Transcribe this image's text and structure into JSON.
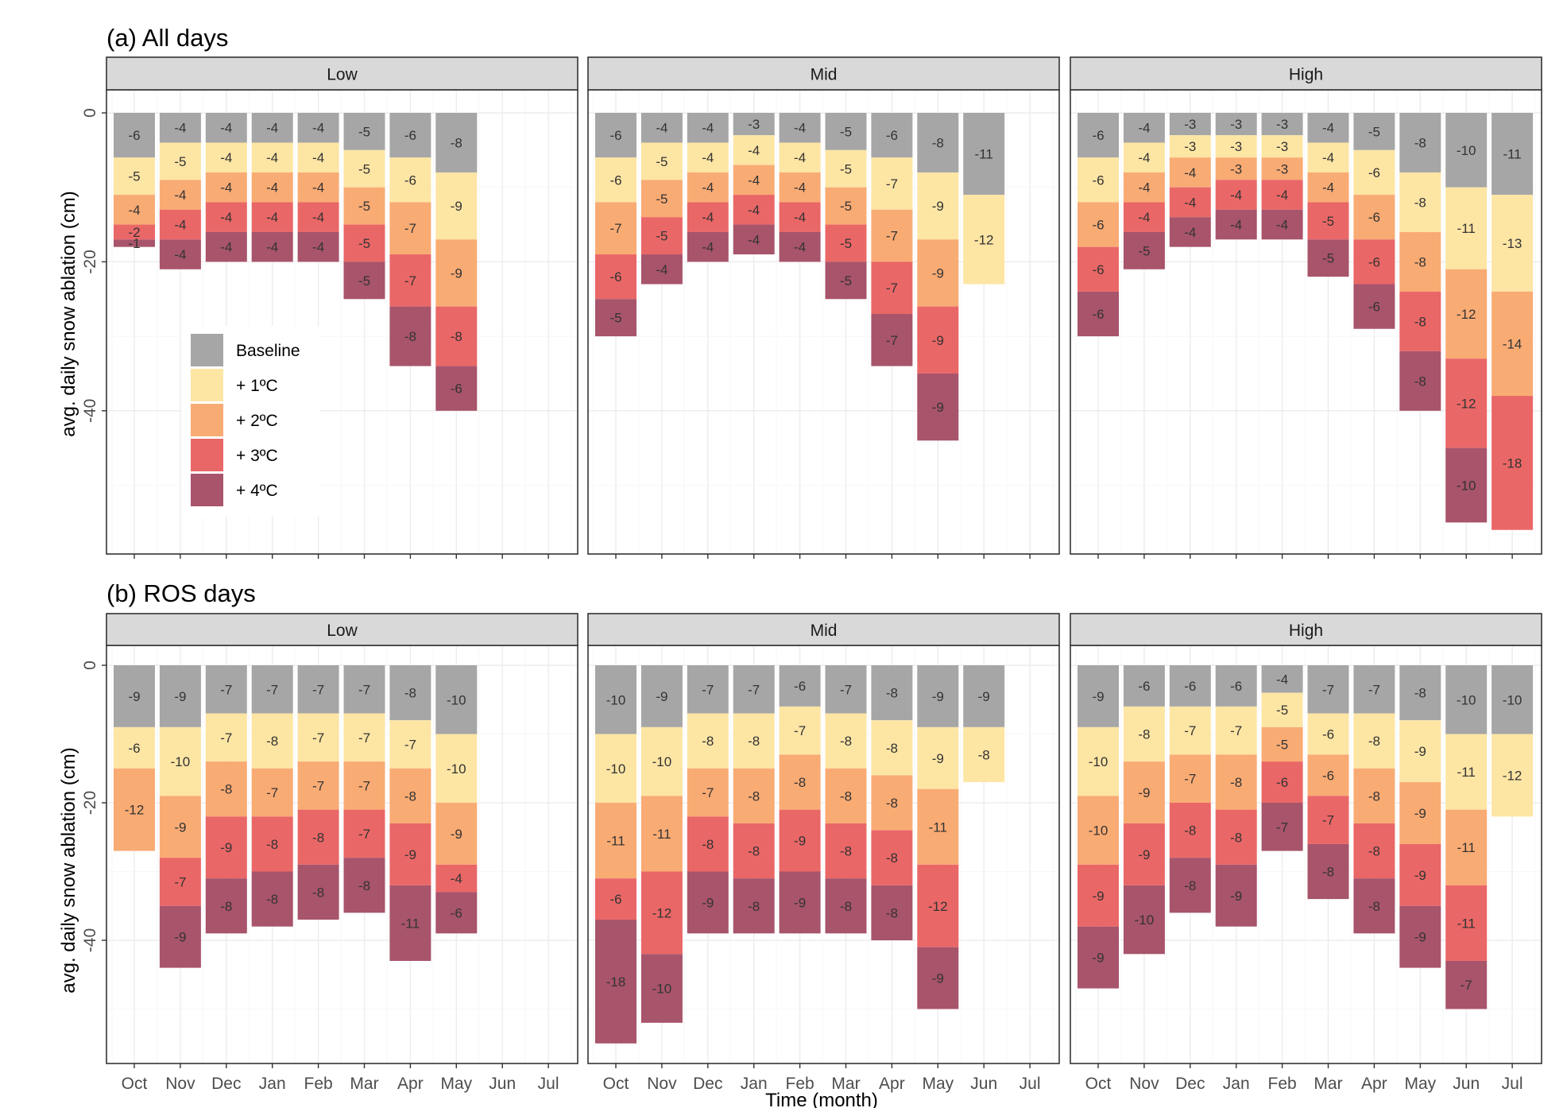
{
  "colors": {
    "Baseline": "#a6a6a6",
    "+ 1ºC": "#fde5a4",
    "+ 2ºC": "#f9ab74",
    "+ 3ºC": "#ea6767",
    "+ 4ºC": "#a8546b",
    "strip_fill": "#d9d9d9",
    "grid": "#ebebeb"
  },
  "xlabel": "Time (month)",
  "ylabel": "avg. daily snow ablation (cm)",
  "legend": {
    "position": "inside top-left panel, lower-left",
    "entries": [
      "Baseline",
      "+ 1ºC",
      "+ 2ºC",
      "+ 3ºC",
      "+ 4ºC"
    ]
  },
  "chart_data": [
    {
      "type": "bar",
      "stacked": true,
      "title": "(a) All days",
      "facets": [
        "Low",
        "Mid",
        "High"
      ],
      "categories": [
        "Oct",
        "Nov",
        "Dec",
        "Jan",
        "Feb",
        "Mar",
        "Apr",
        "May",
        "Jun",
        "Jul"
      ],
      "ylim": [
        -59,
        0
      ],
      "yticks": [
        0,
        -20,
        -40
      ],
      "series_order": [
        "Baseline",
        "+ 1ºC",
        "+ 2ºC",
        "+ 3ºC",
        "+ 4ºC"
      ],
      "panels": [
        {
          "facet": "Low",
          "series": [
            {
              "name": "Baseline",
              "values": [
                -6,
                -4,
                -4,
                -4,
                -4,
                -5,
                -6,
                -8,
                null,
                null
              ]
            },
            {
              "name": "+ 1ºC",
              "values": [
                -5,
                -5,
                -4,
                -4,
                -4,
                -5,
                -6,
                -9,
                null,
                null
              ]
            },
            {
              "name": "+ 2ºC",
              "values": [
                -4,
                -4,
                -4,
                -4,
                -4,
                -5,
                -7,
                -9,
                null,
                null
              ]
            },
            {
              "name": "+ 3ºC",
              "values": [
                -2,
                -4,
                -4,
                -4,
                -4,
                -5,
                -7,
                -8,
                null,
                null
              ]
            },
            {
              "name": "+ 4ºC",
              "values": [
                -1,
                -4,
                -4,
                -4,
                -4,
                -5,
                -8,
                -6,
                null,
                null
              ]
            }
          ]
        },
        {
          "facet": "Mid",
          "series": [
            {
              "name": "Baseline",
              "values": [
                -6,
                -4,
                -4,
                -3,
                -4,
                -5,
                -6,
                -8,
                -11,
                null
              ]
            },
            {
              "name": "+ 1ºC",
              "values": [
                -6,
                -5,
                -4,
                -4,
                -4,
                -5,
                -7,
                -9,
                -12,
                null
              ]
            },
            {
              "name": "+ 2ºC",
              "values": [
                -7,
                -5,
                -4,
                -4,
                -4,
                -5,
                -7,
                -9,
                null,
                null
              ]
            },
            {
              "name": "+ 3ºC",
              "values": [
                -6,
                -5,
                -4,
                -4,
                -4,
                -5,
                -7,
                -9,
                null,
                null
              ]
            },
            {
              "name": "+ 4ºC",
              "values": [
                -5,
                -4,
                -4,
                -4,
                -4,
                -5,
                -7,
                -9,
                null,
                null
              ]
            }
          ]
        },
        {
          "facet": "High",
          "series": [
            {
              "name": "Baseline",
              "values": [
                -6,
                -4,
                -3,
                -3,
                -3,
                -4,
                -5,
                -8,
                -10,
                -11
              ]
            },
            {
              "name": "+ 1ºC",
              "values": [
                -6,
                -4,
                -3,
                -3,
                -3,
                -4,
                -6,
                -8,
                -11,
                -13
              ]
            },
            {
              "name": "+ 2ºC",
              "values": [
                -6,
                -4,
                -4,
                -3,
                -3,
                -4,
                -6,
                -8,
                -12,
                -14
              ]
            },
            {
              "name": "+ 3ºC",
              "values": [
                -6,
                -4,
                -4,
                -4,
                -4,
                -5,
                -6,
                -8,
                -12,
                -18
              ]
            },
            {
              "name": "+ 4ºC",
              "values": [
                -6,
                -5,
                -4,
                -4,
                -4,
                -5,
                -6,
                -8,
                -10,
                null
              ]
            }
          ]
        }
      ]
    },
    {
      "type": "bar",
      "stacked": true,
      "title": "(b) ROS days",
      "facets": [
        "Low",
        "Mid",
        "High"
      ],
      "categories": [
        "Oct",
        "Nov",
        "Dec",
        "Jan",
        "Feb",
        "Mar",
        "Apr",
        "May",
        "Jun",
        "Jul"
      ],
      "ylim": [
        -58,
        0
      ],
      "yticks": [
        0,
        -20,
        -40
      ],
      "series_order": [
        "Baseline",
        "+ 1ºC",
        "+ 2ºC",
        "+ 3ºC",
        "+ 4ºC"
      ],
      "panels": [
        {
          "facet": "Low",
          "series": [
            {
              "name": "Baseline",
              "values": [
                -9,
                -9,
                -7,
                -7,
                -7,
                -7,
                -8,
                -10,
                null,
                null
              ]
            },
            {
              "name": "+ 1ºC",
              "values": [
                -6,
                -10,
                -7,
                -8,
                -7,
                -7,
                -7,
                -10,
                null,
                null
              ]
            },
            {
              "name": "+ 2ºC",
              "values": [
                -12,
                -9,
                -8,
                -7,
                -7,
                -7,
                -8,
                -9,
                null,
                null
              ]
            },
            {
              "name": "+ 3ºC",
              "values": [
                null,
                -7,
                -9,
                -8,
                -8,
                -7,
                -9,
                -4,
                null,
                null
              ]
            },
            {
              "name": "+ 4ºC",
              "values": [
                null,
                -9,
                -8,
                -8,
                -8,
                -8,
                -11,
                -6,
                null,
                null
              ]
            }
          ]
        },
        {
          "facet": "Mid",
          "series": [
            {
              "name": "Baseline",
              "values": [
                -10,
                -9,
                -7,
                -7,
                -6,
                -7,
                -8,
                -9,
                -9,
                null
              ]
            },
            {
              "name": "+ 1ºC",
              "values": [
                -10,
                -10,
                -8,
                -8,
                -7,
                -8,
                -8,
                -9,
                -8,
                null
              ]
            },
            {
              "name": "+ 2ºC",
              "values": [
                -11,
                -11,
                -7,
                -8,
                -8,
                -8,
                -8,
                -11,
                null,
                null
              ]
            },
            {
              "name": "+ 3ºC",
              "values": [
                -6,
                -12,
                -8,
                -8,
                -9,
                -8,
                -8,
                -12,
                null,
                null
              ]
            },
            {
              "name": "+ 4ºC",
              "values": [
                -18,
                -10,
                -9,
                -8,
                -9,
                -8,
                -8,
                -9,
                null,
                null
              ]
            }
          ]
        },
        {
          "facet": "High",
          "series": [
            {
              "name": "Baseline",
              "values": [
                -9,
                -6,
                -6,
                -6,
                -4,
                -7,
                -7,
                -8,
                -10,
                -10
              ]
            },
            {
              "name": "+ 1ºC",
              "values": [
                -10,
                -8,
                -7,
                -7,
                -5,
                -6,
                -8,
                -9,
                -11,
                -12
              ]
            },
            {
              "name": "+ 2ºC",
              "values": [
                -10,
                -9,
                -7,
                -8,
                -5,
                -6,
                -8,
                -9,
                -11,
                null
              ]
            },
            {
              "name": "+ 3ºC",
              "values": [
                -9,
                -9,
                -8,
                -8,
                -6,
                -7,
                -8,
                -9,
                -11,
                null
              ]
            },
            {
              "name": "+ 4ºC",
              "values": [
                -9,
                -10,
                -8,
                -9,
                -7,
                -8,
                -8,
                -9,
                -7,
                null
              ]
            }
          ]
        }
      ]
    }
  ]
}
